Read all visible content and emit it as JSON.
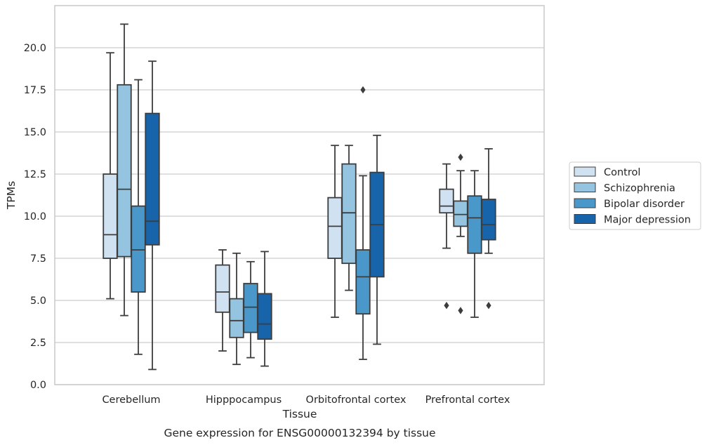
{
  "chart_data": {
    "type": "box",
    "xlabel": "Tissue",
    "ylabel": "TPMs",
    "caption": "Gene expression for ENSG00000132394 by tissue",
    "ylim": [
      0,
      22.5
    ],
    "yticks": [
      0,
      2.5,
      5,
      7.5,
      10,
      12.5,
      15,
      17.5,
      20
    ],
    "ytick_labels": [
      "0.0",
      "2.5",
      "5.0",
      "7.5",
      "10.0",
      "12.5",
      "15.0",
      "17.5",
      "20.0"
    ],
    "grid": "horizontal",
    "legend_position": "right",
    "categories": [
      "Cerebellum",
      "Hipppocampus",
      "Orbitofrontal cortex",
      "Prefrontal cortex"
    ],
    "series": [
      {
        "name": "Control",
        "color": "#d0e1f2",
        "boxes": [
          {
            "whislo": 5.1,
            "q1": 7.5,
            "med": 8.9,
            "q3": 12.5,
            "whishi": 19.7,
            "fliers": []
          },
          {
            "whislo": 2.0,
            "q1": 4.3,
            "med": 5.5,
            "q3": 7.1,
            "whishi": 8.0,
            "fliers": []
          },
          {
            "whislo": 4.0,
            "q1": 7.5,
            "med": 9.4,
            "q3": 11.1,
            "whishi": 14.2,
            "fliers": []
          },
          {
            "whislo": 8.1,
            "q1": 10.2,
            "med": 10.6,
            "q3": 11.6,
            "whishi": 13.1,
            "fliers": [
              4.7
            ]
          }
        ]
      },
      {
        "name": "Schizophrenia",
        "color": "#94c4df",
        "boxes": [
          {
            "whislo": 4.1,
            "q1": 7.6,
            "med": 11.6,
            "q3": 17.8,
            "whishi": 21.4,
            "fliers": []
          },
          {
            "whislo": 1.2,
            "q1": 2.8,
            "med": 3.8,
            "q3": 5.1,
            "whishi": 7.8,
            "fliers": []
          },
          {
            "whislo": 5.6,
            "q1": 7.2,
            "med": 10.2,
            "q3": 13.1,
            "whishi": 14.2,
            "fliers": []
          },
          {
            "whislo": 8.8,
            "q1": 9.4,
            "med": 10.1,
            "q3": 10.9,
            "whishi": 12.7,
            "fliers": [
              13.5,
              4.4
            ]
          }
        ]
      },
      {
        "name": "Bipolar disorder",
        "color": "#4a98c9",
        "boxes": [
          {
            "whislo": 1.8,
            "q1": 5.5,
            "med": 8.0,
            "q3": 10.6,
            "whishi": 18.1,
            "fliers": []
          },
          {
            "whislo": 1.6,
            "q1": 3.1,
            "med": 4.6,
            "q3": 6.0,
            "whishi": 7.3,
            "fliers": []
          },
          {
            "whislo": 1.5,
            "q1": 4.2,
            "med": 6.4,
            "q3": 8.0,
            "whishi": 12.4,
            "fliers": [
              17.5
            ]
          },
          {
            "whislo": 4.0,
            "q1": 7.8,
            "med": 9.9,
            "q3": 11.2,
            "whishi": 12.7,
            "fliers": []
          }
        ]
      },
      {
        "name": "Major depression",
        "color": "#1764ab",
        "boxes": [
          {
            "whislo": 0.9,
            "q1": 8.3,
            "med": 9.7,
            "q3": 16.1,
            "whishi": 19.2,
            "fliers": []
          },
          {
            "whislo": 1.1,
            "q1": 2.7,
            "med": 3.6,
            "q3": 5.4,
            "whishi": 7.9,
            "fliers": []
          },
          {
            "whislo": 2.4,
            "q1": 6.4,
            "med": 9.5,
            "q3": 12.6,
            "whishi": 14.8,
            "fliers": []
          },
          {
            "whislo": 7.8,
            "q1": 8.6,
            "med": 9.5,
            "q3": 11.0,
            "whishi": 14.0,
            "fliers": [
              4.7
            ]
          }
        ]
      }
    ]
  }
}
